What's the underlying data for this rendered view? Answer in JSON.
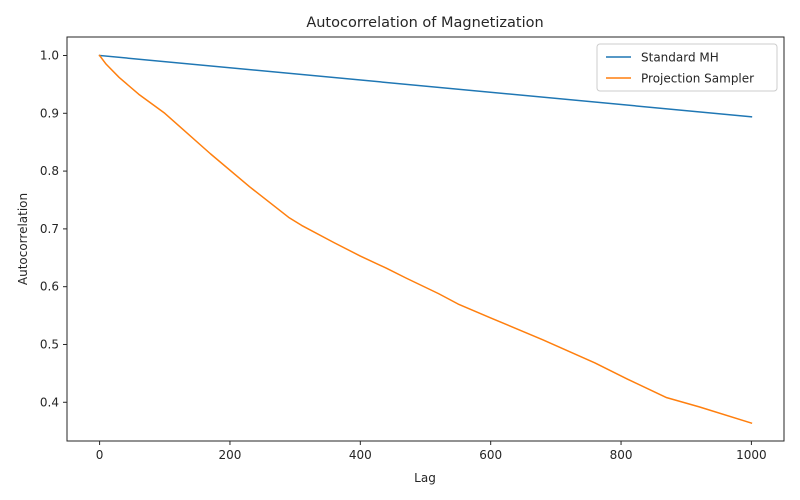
{
  "chart_data": {
    "type": "line",
    "title": "Autocorrelation of Magnetization",
    "xlabel": "Lag",
    "ylabel": "Autocorrelation",
    "xlim": [
      -50,
      1050
    ],
    "ylim": [
      0.333,
      1.032
    ],
    "xticks": [
      0,
      200,
      400,
      600,
      800,
      1000
    ],
    "xtick_labels": [
      "0",
      "200",
      "400",
      "600",
      "800",
      "1000"
    ],
    "yticks": [
      0.4,
      0.5,
      0.6,
      0.7,
      0.8,
      0.9,
      1.0
    ],
    "ytick_labels": [
      "0.4",
      "0.5",
      "0.6",
      "0.7",
      "0.8",
      "0.9",
      "1.0"
    ],
    "grid": false,
    "legend_position": "upper right",
    "series": [
      {
        "name": "Standard MH",
        "color": "#1f77b4",
        "x": [
          0,
          1000
        ],
        "y": [
          1.0,
          0.894
        ]
      },
      {
        "name": "Projection Sampler",
        "color": "#ff7f0e",
        "x": [
          0,
          10,
          30,
          60,
          100,
          170,
          230,
          290,
          310,
          360,
          400,
          440,
          470,
          520,
          550,
          600,
          680,
          760,
          810,
          870,
          920,
          1000
        ],
        "y": [
          1.0,
          0.985,
          0.962,
          0.933,
          0.9,
          0.83,
          0.773,
          0.72,
          0.706,
          0.676,
          0.653,
          0.632,
          0.615,
          0.588,
          0.57,
          0.546,
          0.508,
          0.468,
          0.44,
          0.408,
          0.392,
          0.364
        ]
      }
    ]
  }
}
